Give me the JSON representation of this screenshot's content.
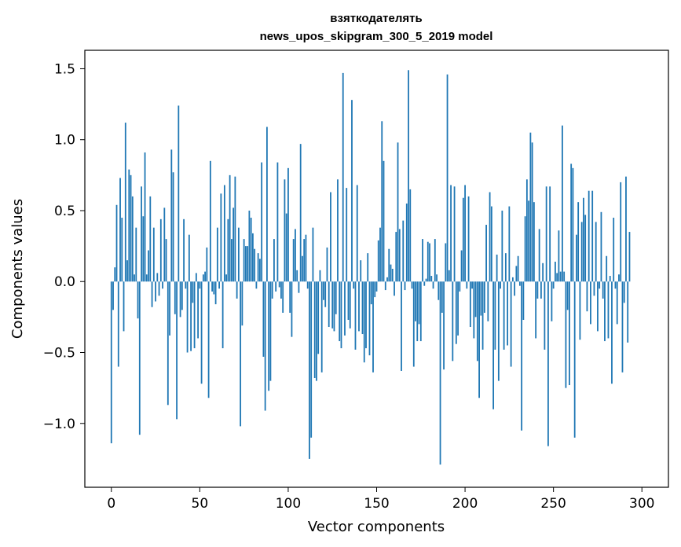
{
  "chart_data": {
    "type": "bar",
    "title": [
      "взяткодателять",
      "news_upos_skipgram_300_5_2019 model"
    ],
    "xlabel": "Vector components",
    "ylabel": "Components values",
    "xlim": [
      -15,
      315
    ],
    "ylim": [
      -1.45,
      1.63
    ],
    "xticks": [
      0,
      50,
      100,
      150,
      200,
      250,
      300
    ],
    "yticks": [
      -1.0,
      -0.5,
      0.0,
      0.5,
      1.0,
      1.5
    ],
    "ytick_labels": [
      "−1.0",
      "−0.5",
      "0.0",
      "0.5",
      "1.0",
      "1.5"
    ],
    "bar_color": "#1f77b4",
    "grid": false,
    "values": [
      -1.14,
      -0.2,
      0.1,
      0.54,
      -0.6,
      0.73,
      0.45,
      -0.35,
      1.12,
      0.15,
      0.79,
      0.75,
      0.6,
      0.05,
      0.38,
      -0.26,
      -1.08,
      0.67,
      0.46,
      0.91,
      0.05,
      0.22,
      0.6,
      -0.18,
      0.38,
      -0.14,
      0.06,
      -0.1,
      0.44,
      -0.05,
      0.52,
      0.3,
      -0.87,
      -0.38,
      0.93,
      0.77,
      -0.23,
      -0.97,
      1.24,
      -0.25,
      -0.2,
      0.44,
      -0.05,
      -0.5,
      0.33,
      -0.49,
      -0.15,
      -0.47,
      0.06,
      -0.4,
      -0.05,
      -0.72,
      0.05,
      0.07,
      0.24,
      -0.82,
      0.85,
      -0.07,
      -0.09,
      -0.16,
      0.38,
      -0.05,
      0.62,
      -0.47,
      0.68,
      0.05,
      0.44,
      0.75,
      0.3,
      0.52,
      0.74,
      -0.12,
      0.38,
      -1.02,
      -0.31,
      0.3,
      0.25,
      0.25,
      0.5,
      0.45,
      0.34,
      0.23,
      -0.05,
      0.2,
      0.16,
      0.84,
      -0.53,
      -0.91,
      1.09,
      -0.77,
      -0.7,
      -0.12,
      0.3,
      -0.07,
      0.84,
      -0.04,
      -0.12,
      -0.22,
      0.72,
      0.48,
      0.8,
      -0.22,
      -0.39,
      0.3,
      0.37,
      0.08,
      -0.08,
      0.97,
      0.18,
      0.3,
      0.33,
      -0.05,
      -1.25,
      -1.1,
      0.38,
      -0.68,
      -0.7,
      -0.51,
      0.08,
      -0.64,
      -0.13,
      -0.18,
      0.24,
      -0.32,
      0.63,
      -0.33,
      -0.35,
      -0.23,
      0.72,
      -0.42,
      -0.47,
      1.47,
      -0.38,
      0.66,
      -0.27,
      -0.33,
      1.28,
      -0.05,
      -0.48,
      0.68,
      -0.35,
      0.15,
      -0.37,
      -0.57,
      -0.47,
      0.2,
      -0.52,
      -0.16,
      -0.64,
      -0.11,
      -0.07,
      0.29,
      0.38,
      1.13,
      0.85,
      -0.06,
      0.03,
      0.23,
      0.12,
      0.09,
      -0.1,
      0.35,
      0.98,
      0.37,
      -0.63,
      0.43,
      -0.06,
      0.55,
      1.49,
      0.65,
      -0.05,
      -0.6,
      -0.28,
      -0.42,
      -0.3,
      -0.42,
      0.3,
      -0.03,
      0.02,
      0.28,
      0.27,
      0.04,
      -0.05,
      0.3,
      0.05,
      -0.13,
      -1.29,
      -0.22,
      -0.62,
      0.27,
      1.46,
      0.08,
      0.68,
      -0.56,
      0.67,
      -0.44,
      -0.38,
      -0.07,
      0.22,
      0.59,
      0.68,
      -0.05,
      0.6,
      -0.32,
      -0.05,
      -0.4,
      -0.25,
      -0.56,
      -0.82,
      -0.24,
      -0.48,
      -0.22,
      0.4,
      -0.28,
      0.63,
      0.53,
      -0.9,
      -0.48,
      0.19,
      -0.7,
      -0.05,
      0.5,
      -0.48,
      0.2,
      -0.45,
      0.53,
      -0.6,
      0.03,
      -0.1,
      0.11,
      0.18,
      -0.03,
      -1.05,
      -0.27,
      0.46,
      0.72,
      0.57,
      1.05,
      0.98,
      0.56,
      -0.4,
      -0.12,
      0.37,
      -0.12,
      0.13,
      -0.48,
      0.67,
      -1.16,
      0.67,
      -0.28,
      -0.05,
      0.14,
      0.06,
      0.36,
      0.07,
      1.1,
      0.07,
      -0.75,
      -0.2,
      -0.73,
      0.83,
      0.8,
      -1.1,
      0.33,
      0.56,
      -0.41,
      0.42,
      0.59,
      0.47,
      -0.21,
      0.64,
      -0.3,
      0.64,
      -0.1,
      0.42,
      -0.35,
      -0.05,
      0.49,
      -0.12,
      -0.42,
      0.18,
      -0.4,
      0.04,
      -0.72,
      0.45,
      -0.05,
      -0.3,
      0.05,
      0.7,
      -0.64,
      -0.15,
      0.74,
      -0.43,
      0.35
    ]
  }
}
